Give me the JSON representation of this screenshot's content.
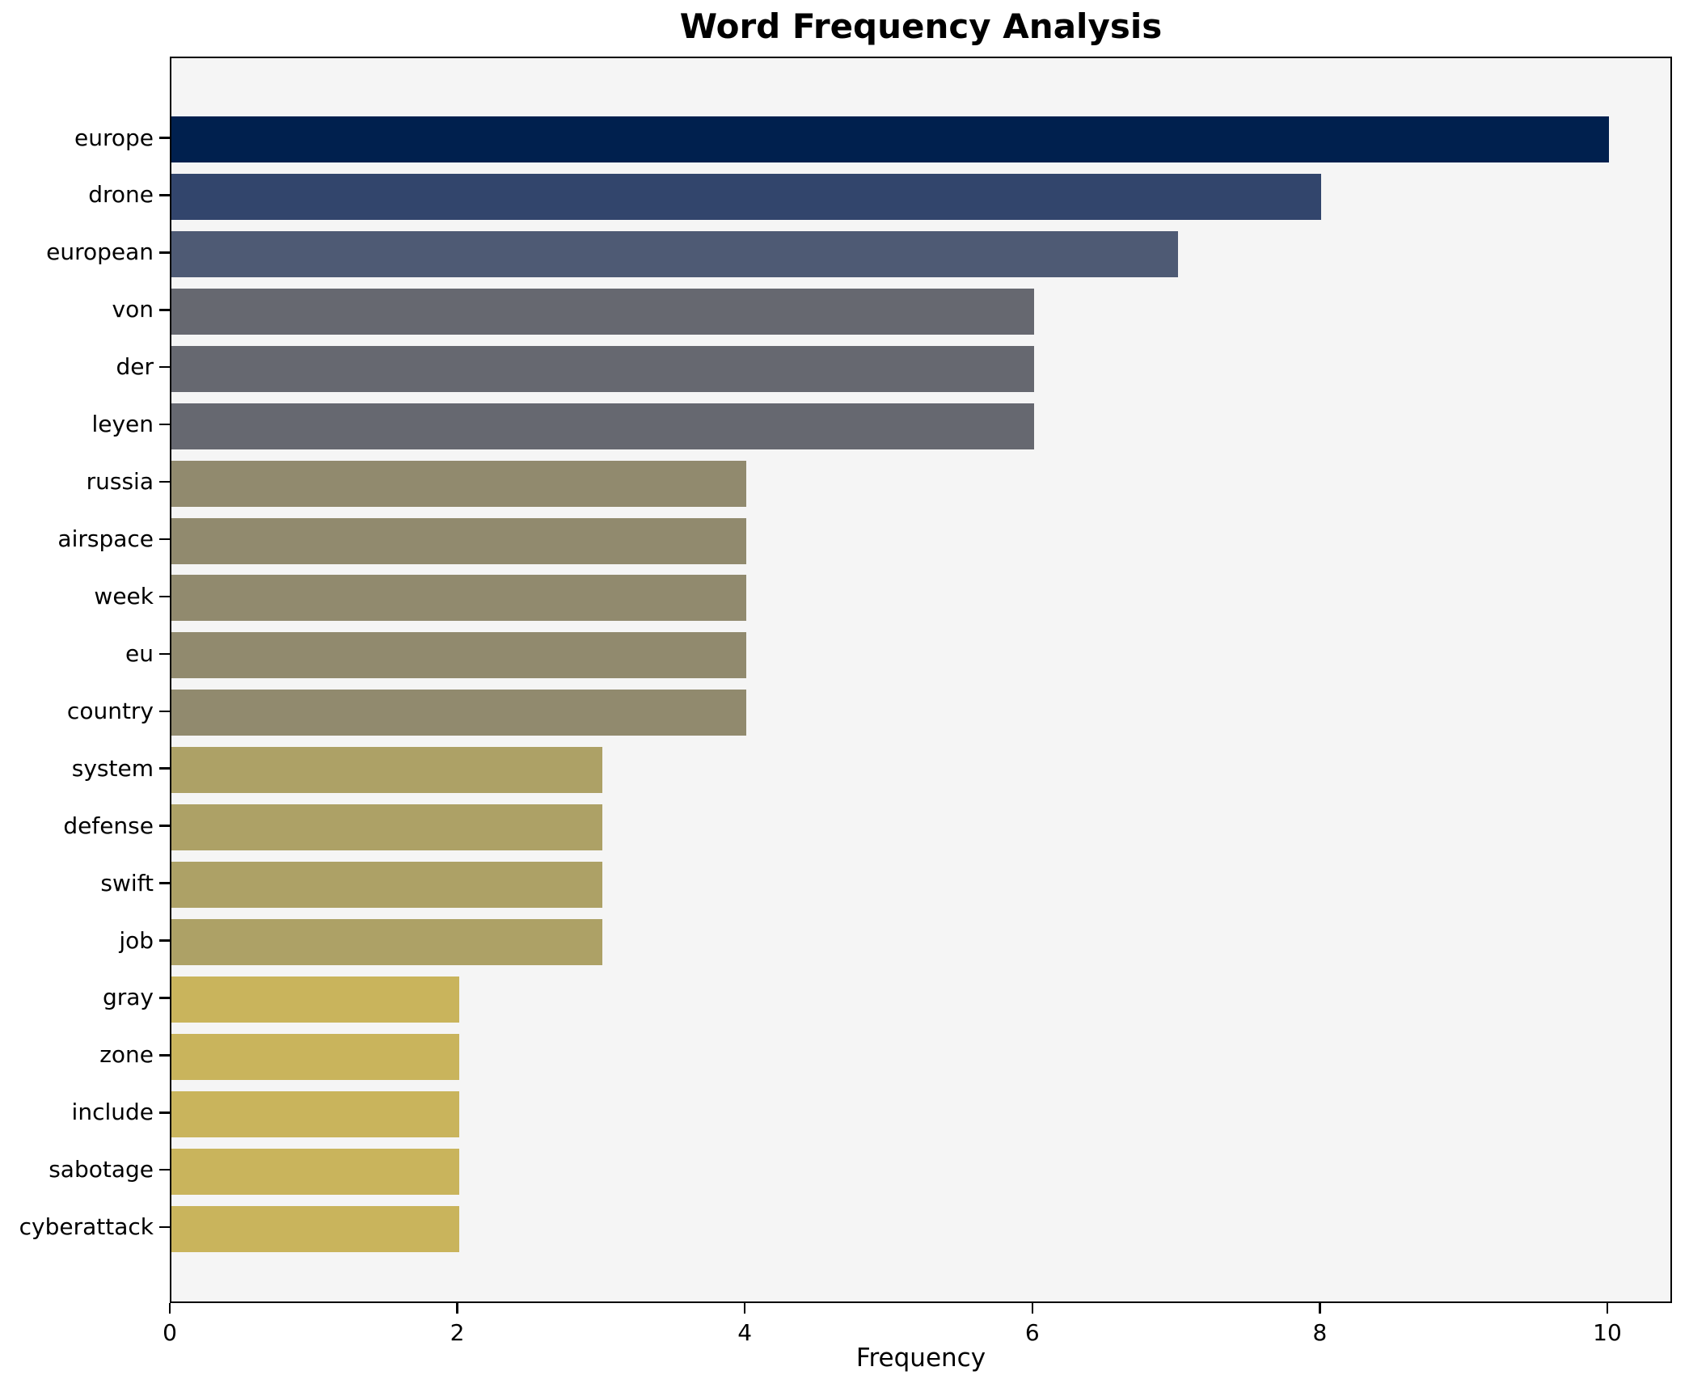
{
  "figure": {
    "title": "Word Frequency Analysis",
    "background": "#ffffff",
    "plot_background": "#f5f5f5",
    "frame_color": "#000000"
  },
  "chart_data": {
    "type": "bar",
    "orientation": "horizontal",
    "title": "Word Frequency Analysis",
    "xlabel": "Frequency",
    "ylabel": "",
    "categories": [
      "europe",
      "drone",
      "european",
      "von",
      "der",
      "leyen",
      "russia",
      "airspace",
      "week",
      "eu",
      "country",
      "system",
      "defense",
      "swift",
      "job",
      "gray",
      "zone",
      "include",
      "sabotage",
      "cyberattack"
    ],
    "values": [
      10,
      8,
      7,
      6,
      6,
      6,
      4,
      4,
      4,
      4,
      4,
      3,
      3,
      3,
      3,
      2,
      2,
      2,
      2,
      2
    ],
    "x_ticks": [
      0,
      2,
      4,
      6,
      8,
      10
    ],
    "xlim": [
      0,
      10.45
    ],
    "grid": false,
    "legend_position": "none",
    "value_colors": {
      "10": "#00204e",
      "8": "#32456c",
      "7": "#4e5a74",
      "6": "#666870",
      "4": "#918a6e",
      "3": "#ada166",
      "2": "#c9b45c"
    }
  }
}
